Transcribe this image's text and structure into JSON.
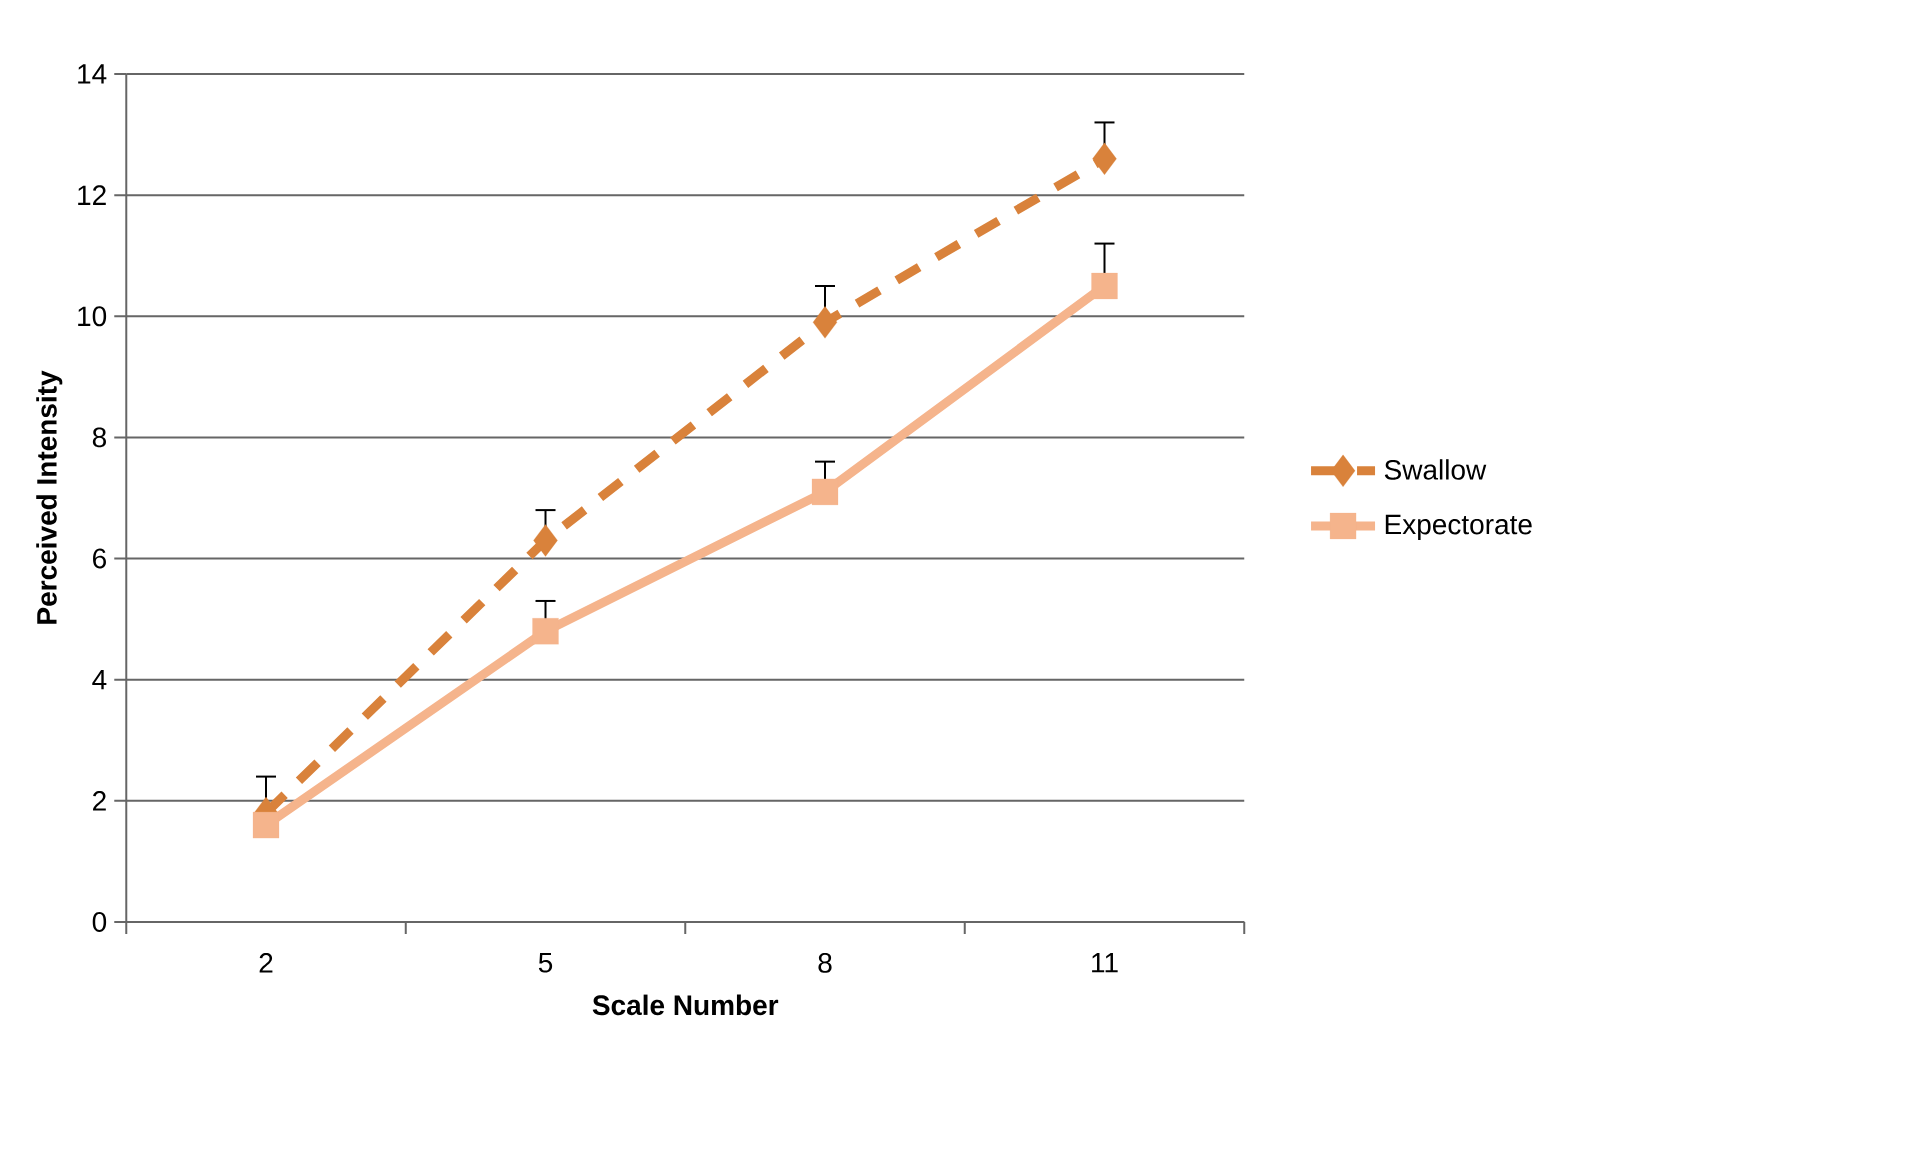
{
  "chart_data": {
    "type": "line",
    "xlabel": "Scale Number",
    "ylabel": "Perceived Intensity",
    "categories": [
      "2",
      "5",
      "8",
      "11"
    ],
    "series": [
      {
        "name": "Swallow",
        "color": "#d9823b",
        "marker": "diamond",
        "line_style": "dashed",
        "values": [
          1.8,
          6.3,
          9.9,
          12.6
        ],
        "errors": [
          [
            1.8,
            2.4
          ],
          [
            6.3,
            6.8
          ],
          [
            9.9,
            10.5
          ],
          [
            12.6,
            13.2
          ]
        ]
      },
      {
        "name": "Expectorate",
        "color": "#f5b48c",
        "marker": "square",
        "line_style": "solid",
        "values": [
          1.6,
          4.8,
          7.1,
          10.5
        ],
        "errors": [
          null,
          [
            4.8,
            5.3
          ],
          [
            7.1,
            7.6
          ],
          [
            10.5,
            11.2
          ]
        ]
      }
    ],
    "ylim": [
      0,
      14
    ],
    "yticks": [
      0,
      2,
      4,
      6,
      8,
      10,
      12,
      14
    ],
    "grid": "y",
    "legend": "right"
  }
}
